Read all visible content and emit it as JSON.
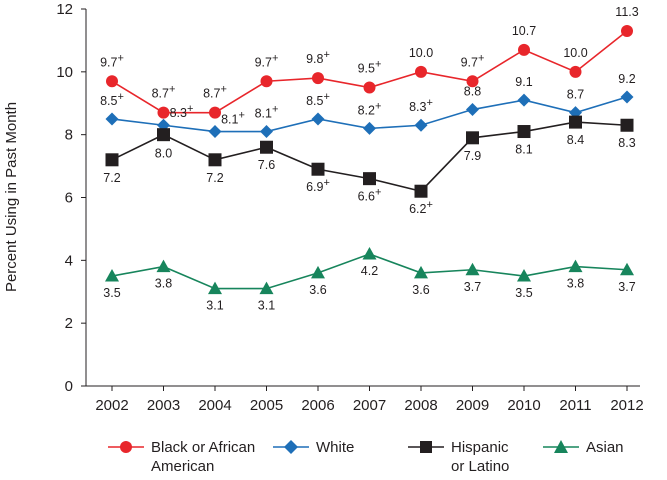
{
  "chart_data": {
    "type": "line",
    "title": "",
    "xlabel": "",
    "ylabel": "Percent Using in Past Month",
    "ylim": [
      0,
      12
    ],
    "yticks": [
      "0",
      "2",
      "4",
      "6",
      "8",
      "10",
      "12"
    ],
    "grid": false,
    "legend_position": "bottom",
    "categories": [
      "2002",
      "2003",
      "2004",
      "2005",
      "2006",
      "2007",
      "2008",
      "2009",
      "2010",
      "2011",
      "2012"
    ],
    "series": [
      {
        "name": "Black or African American",
        "color": "#e8262b",
        "marker": "circle",
        "values": [
          9.7,
          8.7,
          8.7,
          9.7,
          9.8,
          9.5,
          10.0,
          9.7,
          10.7,
          10.0,
          11.3
        ],
        "labels": [
          "9.7",
          "8.7",
          "8.7",
          "9.7",
          "9.8",
          "9.5",
          "10.0",
          "9.7",
          "10.7",
          "10.0",
          "11.3"
        ],
        "significance": [
          "+",
          "+",
          "+",
          "+",
          "+",
          "+",
          "",
          "+",
          "",
          "",
          ""
        ]
      },
      {
        "name": "White",
        "color": "#1e6fb8",
        "marker": "diamond",
        "values": [
          8.5,
          8.3,
          8.1,
          8.1,
          8.5,
          8.2,
          8.3,
          8.8,
          9.1,
          8.7,
          9.2
        ],
        "labels": [
          "8.5",
          "8.3",
          "8.1",
          "8.1",
          "8.5",
          "8.2",
          "8.3",
          "8.8",
          "9.1",
          "8.7",
          "9.2"
        ],
        "significance": [
          "+",
          "+",
          "+",
          "+",
          "+",
          "+",
          "+",
          "",
          "",
          "",
          ""
        ]
      },
      {
        "name": "Hispanic or Latino",
        "color": "#231f20",
        "marker": "square",
        "values": [
          7.2,
          8.0,
          7.2,
          7.6,
          6.9,
          6.6,
          6.2,
          7.9,
          8.1,
          8.4,
          8.3
        ],
        "labels": [
          "7.2",
          "8.0",
          "7.2",
          "7.6",
          "6.9",
          "6.6",
          "6.2",
          "7.9",
          "8.1",
          "8.4",
          "8.3"
        ],
        "significance": [
          "",
          "",
          "",
          "",
          "+",
          "+",
          "+",
          "",
          "",
          "",
          ""
        ]
      },
      {
        "name": "Asian",
        "color": "#17855c",
        "marker": "triangle",
        "values": [
          3.5,
          3.8,
          3.1,
          3.1,
          3.6,
          4.2,
          3.6,
          3.7,
          3.5,
          3.8,
          3.7
        ],
        "labels": [
          "3.5",
          "3.8",
          "3.1",
          "3.1",
          "3.6",
          "4.2",
          "3.6",
          "3.7",
          "3.5",
          "3.8",
          "3.7"
        ],
        "significance": [
          "",
          "",
          "",
          "",
          "",
          "",
          "",
          "",
          "",
          "",
          ""
        ]
      }
    ]
  },
  "legend": [
    {
      "label": "Black or African\nAmerican",
      "color": "#e8262b",
      "marker": "circle"
    },
    {
      "label": "White",
      "color": "#1e6fb8",
      "marker": "diamond"
    },
    {
      "label": "Hispanic\nor Latino",
      "color": "#231f20",
      "marker": "square"
    },
    {
      "label": "Asian",
      "color": "#17855c",
      "marker": "triangle"
    }
  ]
}
